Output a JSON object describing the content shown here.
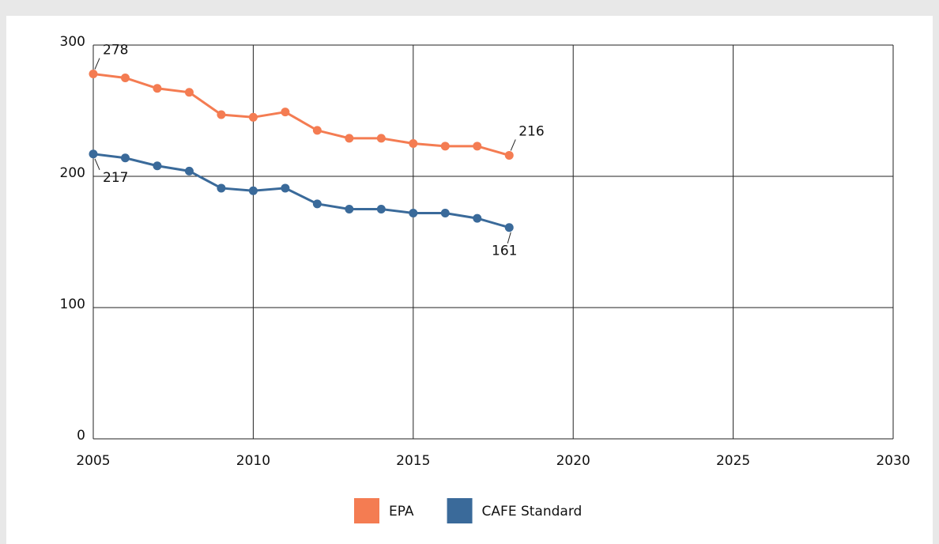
{
  "chart_data": {
    "type": "line",
    "x": [
      2005,
      2006,
      2007,
      2008,
      2009,
      2010,
      2011,
      2012,
      2013,
      2014,
      2015,
      2016,
      2017,
      2018
    ],
    "series": [
      {
        "name": "EPA",
        "color": "#f47c52",
        "values": [
          278,
          275,
          267,
          264,
          247,
          245,
          249,
          235,
          229,
          229,
          225,
          223,
          223,
          216
        ]
      },
      {
        "name": "CAFE Standard",
        "color": "#3a6a9a",
        "values": [
          217,
          214,
          208,
          204,
          191,
          189,
          191,
          179,
          175,
          175,
          172,
          172,
          168,
          161
        ]
      }
    ],
    "xlim": [
      2005,
      2030
    ],
    "xticks": [
      2005,
      2010,
      2015,
      2020,
      2025,
      2030
    ],
    "ylim": [
      0,
      300
    ],
    "yticks": [
      0,
      100,
      200,
      300
    ],
    "grid": true,
    "legend": "bottom"
  }
}
